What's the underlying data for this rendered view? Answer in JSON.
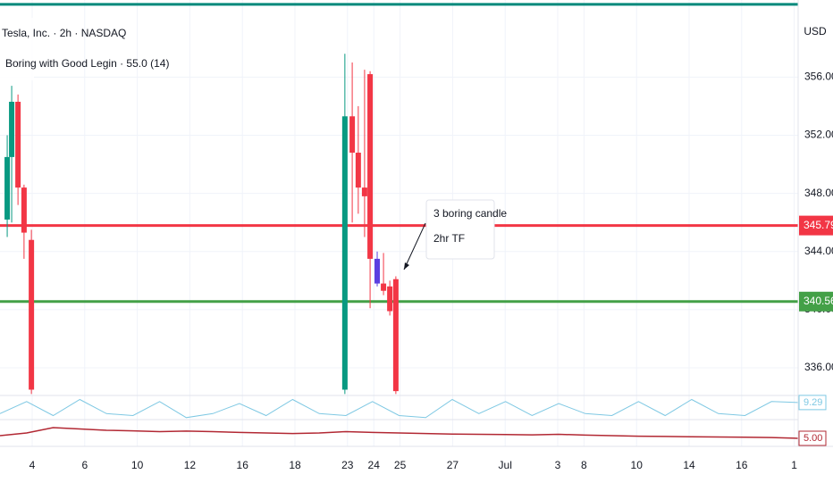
{
  "chart_data": {
    "type": "candlestick",
    "title": "Tesla, Inc. · 2h · NASDAQ",
    "indicator": "Boring with Good Legin · 55.0 (14)",
    "currency": "USD",
    "categories": [
      "4",
      null,
      "6",
      null,
      "10",
      null,
      "12",
      null,
      "16",
      null,
      "18",
      null,
      "23",
      "24",
      "25",
      null,
      "27",
      null,
      "Jul",
      null,
      "3",
      "8",
      null,
      "10",
      null,
      "14",
      null,
      "16",
      null,
      "1"
    ],
    "x": [
      -0.95,
      -0.78,
      -0.54,
      -0.31,
      -0.03,
      11.9,
      12.18,
      12.41,
      12.65,
      12.86,
      13.13,
      13.37,
      13.61,
      13.84
    ],
    "open": [
      346.2,
      350.5,
      354.3,
      348.4,
      344.8,
      334.5,
      353.3,
      350.8,
      348.4,
      356.2,
      343.5,
      341.8,
      341.6,
      342.1
    ],
    "high": [
      352.0,
      355.4,
      354.8,
      348.6,
      345.5,
      357.6,
      357.0,
      354.0,
      356.5,
      356.4,
      344.0,
      343.9,
      342.0,
      342.3
    ],
    "low": [
      345.0,
      346.0,
      347.2,
      343.5,
      334.2,
      334.2,
      346.0,
      346.6,
      345.0,
      340.1,
      341.6,
      341.0,
      339.6,
      334.2
    ],
    "close": [
      350.5,
      354.3,
      348.4,
      345.3,
      334.5,
      353.3,
      350.8,
      348.4,
      347.8,
      343.5,
      341.8,
      341.3,
      339.9,
      334.4
    ],
    "colors": [
      "#089981",
      "#089981",
      "#f23645",
      "#f23645",
      "#f23645",
      "#089981",
      "#f23645",
      "#f23645",
      "#f23645",
      "#f23645",
      "#5b3fe0",
      "#f23645",
      "#f23645",
      "#f23645"
    ],
    "ylim": [
      334.1,
      361.3
    ],
    "yticks": [
      {
        "value": 336,
        "label": "336.00"
      },
      {
        "value": 340,
        "label": "340.00"
      },
      {
        "value": 344,
        "label": "344.00"
      },
      {
        "value": 348,
        "label": "348.00"
      },
      {
        "value": 352,
        "label": "352.00"
      },
      {
        "value": 356,
        "label": "356.00"
      }
    ],
    "levels": [
      {
        "value": 361,
        "color": "#00897b"
      },
      {
        "value": 345.79,
        "color": "#f23645"
      },
      {
        "value": 340.56,
        "color": "#43a047"
      }
    ],
    "annotation": [
      "3 boring candle",
      "2hr TF"
    ],
    "panes": [
      {
        "name": "9.29",
        "color": "#7ec8e3",
        "ylim": [
          0,
          12
        ],
        "values": [
          3,
          9,
          2,
          10,
          3,
          2,
          9,
          1,
          3,
          8,
          2,
          10,
          3,
          2,
          9,
          2,
          1,
          10,
          3,
          9,
          2,
          8,
          3,
          2,
          9,
          2,
          10,
          3,
          2,
          9,
          8.5
        ]
      },
      {
        "name": "5.00",
        "color": "#b22833",
        "ylim": [
          4.6,
          5.6
        ],
        "values": [
          5.0,
          5.1,
          5.3,
          5.25,
          5.2,
          5.18,
          5.15,
          5.17,
          5.15,
          5.12,
          5.1,
          5.08,
          5.1,
          5.15,
          5.12,
          5.1,
          5.08,
          5.06,
          5.05,
          5.04,
          5.03,
          5.05,
          5.02,
          5.0,
          4.98,
          4.97,
          4.96,
          4.95,
          4.94,
          4.93,
          4.9
        ]
      }
    ]
  }
}
